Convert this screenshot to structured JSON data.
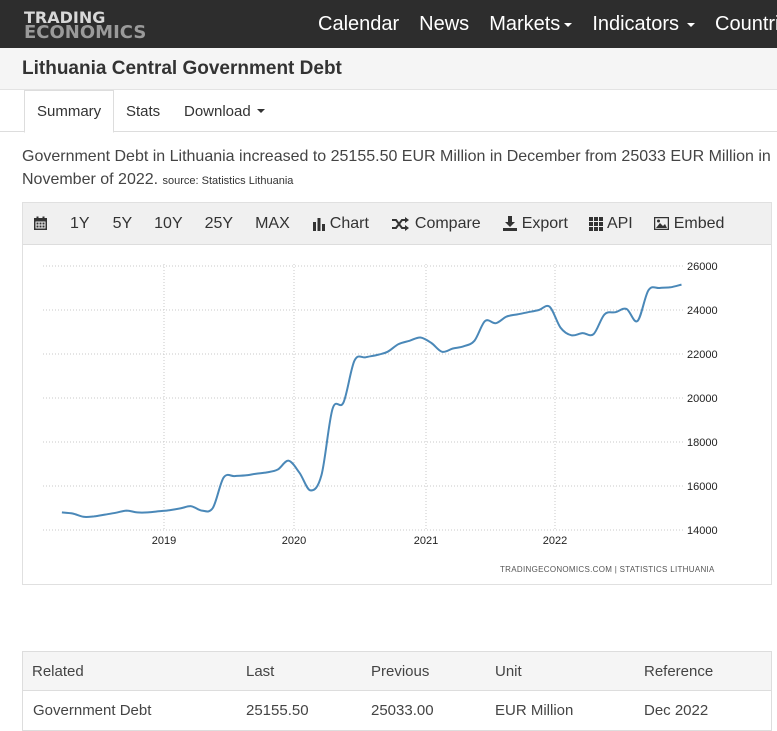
{
  "nav": {
    "logo_line1": "TRADING",
    "logo_line2": "ECONOMICS",
    "links": [
      "Calendar",
      "News",
      "Markets",
      "Indicators",
      "Countries"
    ]
  },
  "page": {
    "title": "Lithuania Central Government Debt"
  },
  "tabs": {
    "summary": "Summary",
    "stats": "Stats",
    "download": "Download"
  },
  "description": {
    "text": "Government Debt in Lithuania increased to 25155.50 EUR Million in December from 25033 EUR Million in November of 2022.",
    "source_label": "source: Statistics Lithuania"
  },
  "toolbar": {
    "ranges": [
      "1Y",
      "5Y",
      "10Y",
      "25Y",
      "MAX"
    ],
    "chart": "Chart",
    "compare": "Compare",
    "export": "Export",
    "api": "API",
    "embed": "Embed"
  },
  "chart_data": {
    "type": "line",
    "series": [
      {
        "values": [
          [
            "2018-03",
            14800
          ],
          [
            "2018-04",
            14750
          ],
          [
            "2018-05",
            14600
          ],
          [
            "2018-06",
            14620
          ],
          [
            "2018-07",
            14700
          ],
          [
            "2018-08",
            14780
          ],
          [
            "2018-09",
            14880
          ],
          [
            "2018-10",
            14800
          ],
          [
            "2018-11",
            14800
          ],
          [
            "2018-12",
            14850
          ],
          [
            "2019-01",
            14900
          ],
          [
            "2019-02",
            14980
          ],
          [
            "2019-03",
            15080
          ],
          [
            "2019-04",
            14880
          ],
          [
            "2019-05",
            15000
          ],
          [
            "2019-06",
            16380
          ],
          [
            "2019-07",
            16450
          ],
          [
            "2019-08",
            16480
          ],
          [
            "2019-09",
            16560
          ],
          [
            "2019-10",
            16620
          ],
          [
            "2019-11",
            16750
          ],
          [
            "2019-12",
            17150
          ],
          [
            "2020-01",
            16600
          ],
          [
            "2020-02",
            15800
          ],
          [
            "2020-03",
            16500
          ],
          [
            "2020-04",
            19500
          ],
          [
            "2020-05",
            19800
          ],
          [
            "2020-06",
            21700
          ],
          [
            "2020-07",
            21850
          ],
          [
            "2020-08",
            21950
          ],
          [
            "2020-09",
            22100
          ],
          [
            "2020-10",
            22450
          ],
          [
            "2020-11",
            22600
          ],
          [
            "2020-12",
            22750
          ],
          [
            "2021-01",
            22500
          ],
          [
            "2021-02",
            22100
          ],
          [
            "2021-03",
            22250
          ],
          [
            "2021-04",
            22350
          ],
          [
            "2021-05",
            22600
          ],
          [
            "2021-06",
            23500
          ],
          [
            "2021-07",
            23400
          ],
          [
            "2021-08",
            23700
          ],
          [
            "2021-09",
            23800
          ],
          [
            "2021-10",
            23900
          ],
          [
            "2021-11",
            24000
          ],
          [
            "2021-12",
            24150
          ],
          [
            "2022-01",
            23200
          ],
          [
            "2022-02",
            22850
          ],
          [
            "2022-03",
            22950
          ],
          [
            "2022-04",
            22900
          ],
          [
            "2022-05",
            23800
          ],
          [
            "2022-06",
            23900
          ],
          [
            "2022-07",
            24050
          ],
          [
            "2022-08",
            23500
          ],
          [
            "2022-09",
            24900
          ],
          [
            "2022-10",
            25000
          ],
          [
            "2022-11",
            25033
          ],
          [
            "2022-12",
            25155.5
          ]
        ]
      }
    ],
    "x_ticks": [
      "2019",
      "2020",
      "2021",
      "2022"
    ],
    "y_ticks": [
      "14000",
      "16000",
      "18000",
      "20000",
      "22000",
      "24000",
      "26000"
    ],
    "ylim": [
      14000,
      26000
    ],
    "y_axis_side": "right",
    "grid": true,
    "line_color": "#4a88b8",
    "credit": "TRADINGECONOMICS.COM  |  STATISTICS LITHUANIA"
  },
  "related_table": {
    "headers": [
      "Related",
      "Last",
      "Previous",
      "Unit",
      "Reference"
    ],
    "rows": [
      [
        "Government Debt",
        "25155.50",
        "25033.00",
        "EUR Million",
        "Dec 2022"
      ]
    ]
  }
}
